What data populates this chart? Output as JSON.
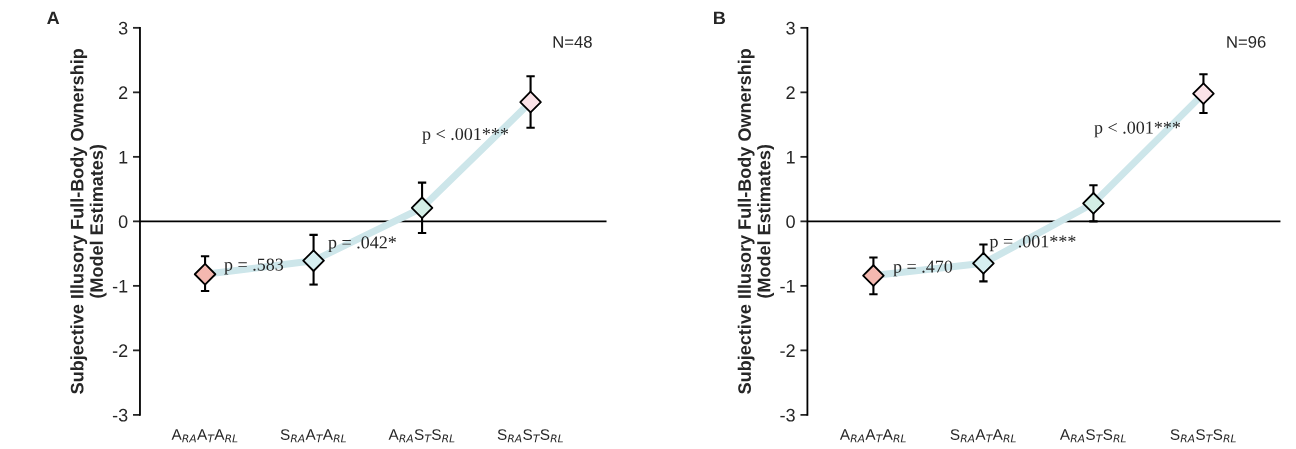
{
  "chart_data": [
    {
      "type": "line",
      "title": "A",
      "ylabel": "Subjective Illusory Full-Body Ownership\n(Model Estimates)",
      "categories": [
        "A$_{RA}$A$_{T}$A$_{RL}$",
        "S$_{RA}$A$_{T}$A$_{RL}$",
        "A$_{RA}$S$_{T}$S$_{RL}$",
        "S$_{RA}$S$_{T}$S$_{RL}$"
      ],
      "series": [
        {
          "color": "#cde6ea",
          "colors": [
            "#f4b8b0",
            "#d6eef0",
            "#d3eee6",
            "#fbe3e8"
          ],
          "values": [
            -0.82,
            -0.61,
            0.21,
            1.85
          ],
          "errors": [
            [
              -1.08,
              -0.54
            ],
            [
              -0.98,
              -0.21
            ],
            [
              -0.18,
              0.6
            ],
            [
              1.45,
              2.25
            ]
          ]
        }
      ],
      "marker": "diamond",
      "ylim": [
        -3,
        3
      ],
      "yticks": [
        -3,
        -2,
        -1,
        0,
        1,
        2,
        3
      ],
      "ref_lines": [
        {
          "axis": "y",
          "value": 0,
          "color": "#000000"
        }
      ],
      "annotations": [
        "N=48",
        "p = .583",
        "p = .042*",
        "p < .001***"
      ]
    },
    {
      "type": "line",
      "title": "B",
      "ylabel": "Subjective Illusory Full-Body Ownership\n(Model Estimates)",
      "categories": [
        "A$_{RA}$A$_{T}$A$_{RL}$",
        "S$_{RA}$A$_{T}$A$_{RL}$",
        "A$_{RA}$S$_{T}$S$_{RL}$",
        "S$_{RA}$S$_{T}$S$_{RL}$"
      ],
      "series": [
        {
          "color": "#cde6ea",
          "colors": [
            "#f4b8b0",
            "#d6eef0",
            "#d3eee6",
            "#fbe3e8"
          ],
          "values": [
            -0.84,
            -0.65,
            0.28,
            1.98
          ],
          "errors": [
            [
              -1.13,
              -0.56
            ],
            [
              -0.93,
              -0.36
            ],
            [
              0,
              0.56
            ],
            [
              1.68,
              2.28
            ]
          ]
        }
      ],
      "marker": "diamond",
      "ylim": [
        -3,
        3
      ],
      "yticks": [
        -3,
        -2,
        -1,
        0,
        1,
        2,
        3
      ],
      "ref_lines": [
        {
          "axis": "y",
          "value": 0,
          "color": "#000000"
        }
      ],
      "annotations": [
        "N=96",
        "p = .470",
        "p = .001***",
        "p < .001***"
      ]
    }
  ]
}
